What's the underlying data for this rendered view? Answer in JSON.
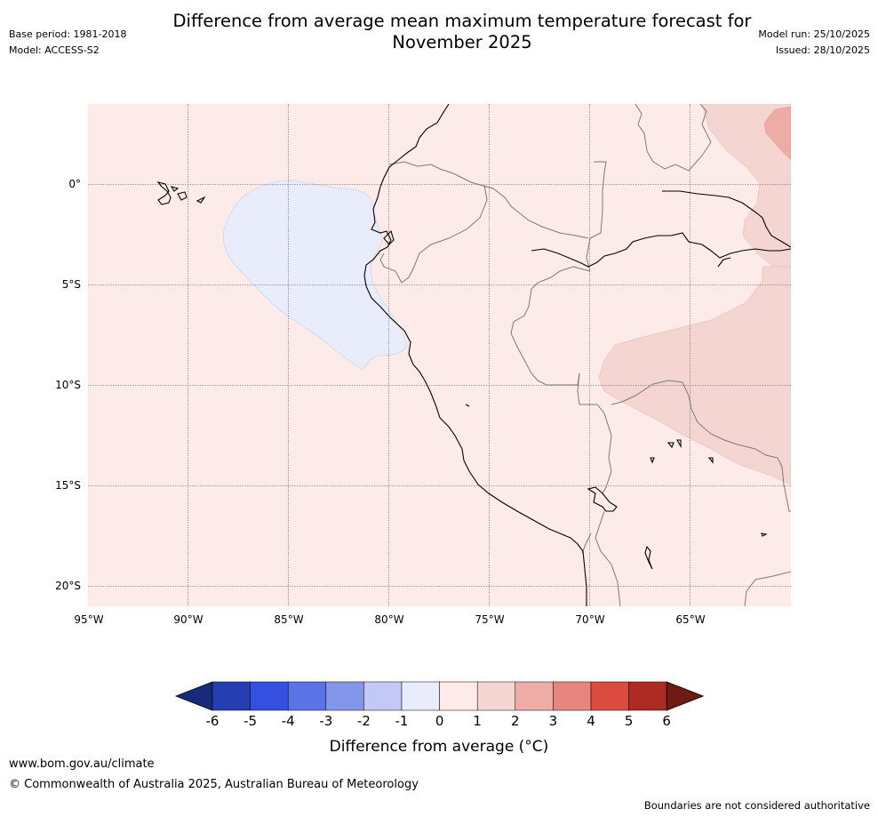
{
  "header": {
    "title_line1": "Difference from average mean maximum temperature forecast for",
    "title_line2": "November 2025",
    "base_period": "Base period: 1981-2018",
    "model": "Model: ACCESS-S2",
    "model_run": "Model run: 25/10/2025",
    "issued": "Issued: 28/10/2025"
  },
  "map": {
    "lat_labels": [
      "0°",
      "5°S",
      "10°S",
      "15°S",
      "20°S"
    ],
    "lon_labels": [
      "95°W",
      "90°W",
      "85°W",
      "80°W",
      "75°W",
      "70°W",
      "65°W"
    ]
  },
  "colorbar": {
    "label": "Difference from average (°C)",
    "ticks": [
      "-6",
      "-5",
      "-4",
      "-3",
      "-2",
      "-1",
      "0",
      "1",
      "2",
      "3",
      "4",
      "5",
      "6"
    ],
    "colors": [
      "#1a2a7a",
      "#263fb0",
      "#3550e0",
      "#5a73e6",
      "#8496eb",
      "#c3c9f5",
      "#e8ecfb",
      "#fcebe9",
      "#f5d5d2",
      "#eeaca7",
      "#e7867e",
      "#db4b3f",
      "#ad2b24",
      "#701a16"
    ]
  },
  "footer": {
    "url": "www.bom.gov.au/climate",
    "copyright": "© Commonwealth of Australia 2025, Australian Bureau of Meteorology",
    "note": "Boundaries are not considered authoritative"
  }
}
